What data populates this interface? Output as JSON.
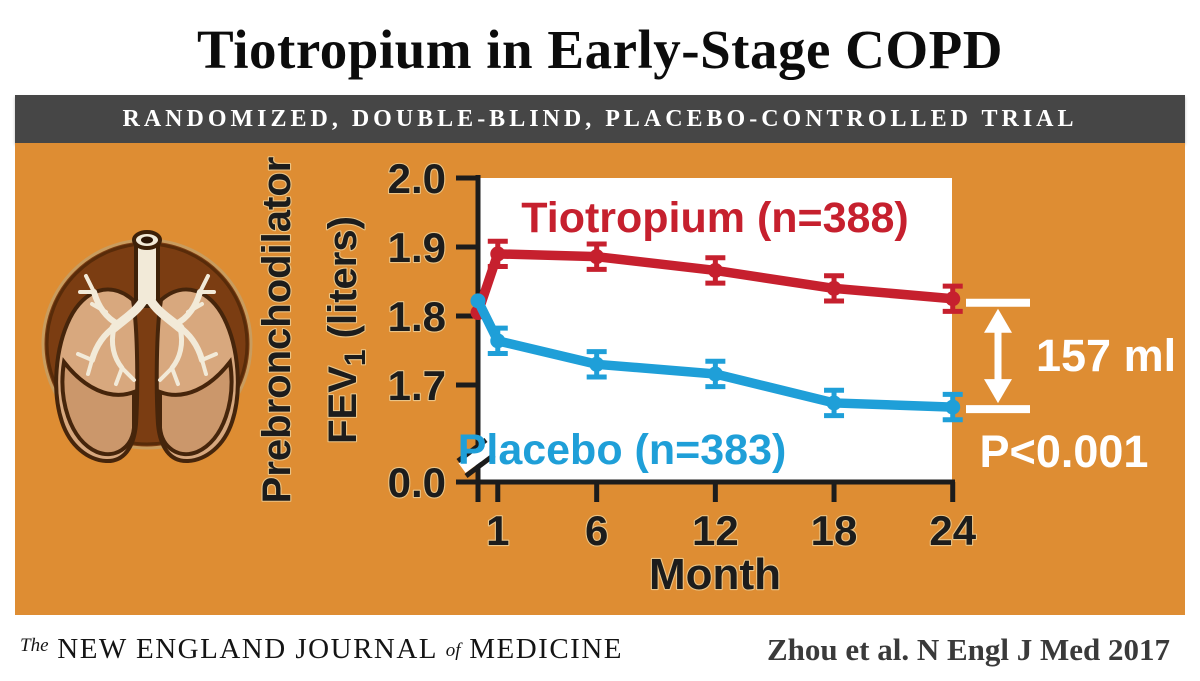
{
  "header": {
    "title": "Tiotropium in Early-Stage COPD",
    "banner": "RANDOMIZED, DOUBLE-BLIND, PLACEBO-CONTROLLED TRIAL"
  },
  "chart_data": {
    "type": "line",
    "title": "",
    "xlabel": "Month",
    "ylabel": "Prebronchodilator FEV1 (liters)",
    "ylabel_lines": {
      "line1": "Prebronchodilator",
      "line2_main": "FEV",
      "line2_sub": "1",
      "line2_rest": " (liters)"
    },
    "x_months": [
      0,
      1,
      6,
      12,
      18,
      24
    ],
    "x_tick_months": [
      1,
      6,
      12,
      18,
      24
    ],
    "x_tick_labels": [
      "1",
      "6",
      "12",
      "18",
      "24"
    ],
    "y_tick_values": [
      2.0,
      1.9,
      1.8,
      1.7,
      0.0
    ],
    "y_tick_labels": [
      "2.0",
      "1.9",
      "1.8",
      "1.7",
      "0.0"
    ],
    "y_axis_break": true,
    "ylim_visible": [
      1.65,
      2.0
    ],
    "series": [
      {
        "name": "Tiotropium (n=388)",
        "color": "#C6202E",
        "values": [
          1.805,
          1.89,
          1.886,
          1.866,
          1.84,
          1.825
        ],
        "err": 0.014
      },
      {
        "name": "Placebo (n=383)",
        "color": "#1F9FD8",
        "values": [
          1.822,
          1.764,
          1.73,
          1.716,
          1.674,
          1.668
        ],
        "err": 0.014
      }
    ],
    "annotation": {
      "difference_label": "157 ml",
      "p_value_label": "P<0.001"
    }
  },
  "footer": {
    "journal_the": "The",
    "journal_caps1": "NEW ENGLAND JOURNAL",
    "journal_of": "of",
    "journal_caps2": "MEDICINE",
    "citation": "Zhou et al. N Engl J Med 2017"
  },
  "colors": {
    "orange_bg": "#DE8D33",
    "banner_bg": "#464646",
    "tiotropium_red": "#C6202E",
    "placebo_blue": "#1F9FD8",
    "axis_dark": "#1C1C1C",
    "annotation_white": "#FFFFFF"
  }
}
